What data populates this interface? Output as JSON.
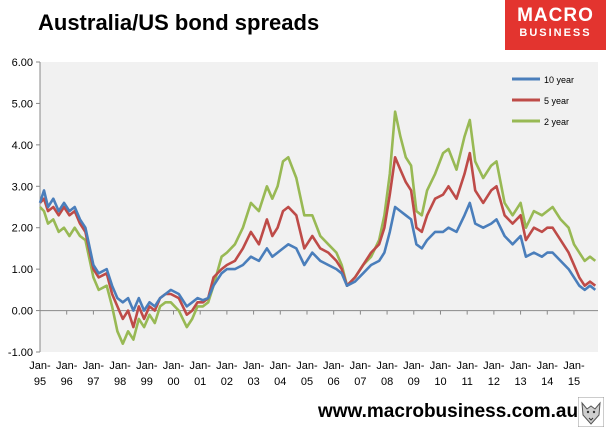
{
  "title": "Australia/US bond spreads",
  "logo": {
    "line1": "MACRO",
    "line2": "BUSINESS",
    "color": "#e3342f"
  },
  "footer": {
    "url": "www.macrobusiness.com.au"
  },
  "chart_data": {
    "type": "line",
    "title": "Australia/US bond spreads",
    "xlabel": "",
    "ylabel": "",
    "ylim": [
      -1.0,
      6.0
    ],
    "yticks": [
      -1,
      0,
      1,
      2,
      3,
      4,
      5,
      6
    ],
    "ytick_labels": [
      "-1.00",
      "0.00",
      "1.00",
      "2.00",
      "3.00",
      "4.00",
      "5.00",
      "6.00"
    ],
    "xlim": [
      1995.0,
      2015.9
    ],
    "xticks": [
      {
        "year": 1995,
        "label": "Jan-\n95"
      },
      {
        "year": 1996,
        "label": "Jan-\n96"
      },
      {
        "year": 1997,
        "label": "Jan-\n97"
      },
      {
        "year": 1998,
        "label": "Jan-\n98"
      },
      {
        "year": 1999,
        "label": "Jan-\n99"
      },
      {
        "year": 2000,
        "label": "Jan-\n00"
      },
      {
        "year": 2001,
        "label": "Jan-\n01"
      },
      {
        "year": 2002,
        "label": "Jan-\n02"
      },
      {
        "year": 2003,
        "label": "Jan-\n03"
      },
      {
        "year": 2004,
        "label": "Jan-\n04"
      },
      {
        "year": 2005,
        "label": "Jan-\n05"
      },
      {
        "year": 2006,
        "label": "Jan-\n06"
      },
      {
        "year": 2007,
        "label": "Jan-\n07"
      },
      {
        "year": 2008,
        "label": "Jan-\n08"
      },
      {
        "year": 2009,
        "label": "Jan-\n09"
      },
      {
        "year": 2010,
        "label": "Jan-\n10"
      },
      {
        "year": 2011,
        "label": "Jan-\n11"
      },
      {
        "year": 2012,
        "label": "Jan-\n12"
      },
      {
        "year": 2013,
        "label": "Jan-\n13"
      },
      {
        "year": 2014,
        "label": "Jan-\n14"
      },
      {
        "year": 2015,
        "label": "Jan-\n15"
      }
    ],
    "grid": false,
    "legend_position": "top-right",
    "series": [
      {
        "name": "10 year",
        "color": "#4a7ebb",
        "x": [
          1995.0,
          1995.15,
          1995.3,
          1995.5,
          1995.7,
          1995.9,
          1996.1,
          1996.3,
          1996.5,
          1996.7,
          1997.0,
          1997.2,
          1997.5,
          1997.7,
          1997.9,
          1998.1,
          1998.3,
          1998.5,
          1998.7,
          1998.9,
          1999.1,
          1999.3,
          1999.5,
          1999.7,
          1999.9,
          2000.2,
          2000.5,
          2000.7,
          2000.9,
          2001.1,
          2001.3,
          2001.5,
          2001.8,
          2002.0,
          2002.3,
          2002.6,
          2002.9,
          2003.2,
          2003.5,
          2003.7,
          2003.9,
          2004.1,
          2004.3,
          2004.6,
          2004.9,
          2005.2,
          2005.5,
          2005.8,
          2006.1,
          2006.3,
          2006.5,
          2006.8,
          2007.1,
          2007.4,
          2007.7,
          2007.9,
          2008.1,
          2008.3,
          2008.5,
          2008.7,
          2008.9,
          2009.1,
          2009.3,
          2009.5,
          2009.8,
          2010.1,
          2010.3,
          2010.6,
          2010.9,
          2011.1,
          2011.3,
          2011.6,
          2011.9,
          2012.1,
          2012.4,
          2012.7,
          2013.0,
          2013.2,
          2013.5,
          2013.8,
          2014.0,
          2014.2,
          2014.5,
          2014.8,
          2015.0,
          2015.2,
          2015.4,
          2015.6,
          2015.8
        ],
        "values": [
          2.6,
          2.9,
          2.5,
          2.7,
          2.4,
          2.6,
          2.4,
          2.5,
          2.2,
          2.0,
          1.1,
          0.9,
          1.0,
          0.6,
          0.3,
          0.2,
          0.3,
          0.0,
          0.3,
          0.0,
          0.2,
          0.1,
          0.3,
          0.4,
          0.5,
          0.4,
          0.1,
          0.2,
          0.3,
          0.25,
          0.3,
          0.6,
          0.9,
          1.0,
          1.0,
          1.1,
          1.3,
          1.2,
          1.5,
          1.3,
          1.4,
          1.5,
          1.6,
          1.5,
          1.1,
          1.4,
          1.2,
          1.1,
          1.0,
          0.9,
          0.6,
          0.7,
          0.9,
          1.1,
          1.2,
          1.4,
          1.9,
          2.5,
          2.4,
          2.3,
          2.2,
          1.6,
          1.5,
          1.7,
          1.9,
          1.9,
          2.0,
          1.9,
          2.3,
          2.6,
          2.1,
          2.0,
          2.1,
          2.2,
          1.8,
          1.6,
          1.8,
          1.3,
          1.4,
          1.3,
          1.4,
          1.4,
          1.2,
          1.0,
          0.8,
          0.6,
          0.5,
          0.6,
          0.5
        ]
      },
      {
        "name": "5 year",
        "color": "#be4b48",
        "x": [
          1995.0,
          1995.15,
          1995.3,
          1995.5,
          1995.7,
          1995.9,
          1996.1,
          1996.3,
          1996.5,
          1996.7,
          1997.0,
          1997.2,
          1997.5,
          1997.7,
          1997.9,
          1998.1,
          1998.3,
          1998.5,
          1998.7,
          1998.9,
          1999.1,
          1999.3,
          1999.5,
          1999.7,
          1999.9,
          2000.2,
          2000.5,
          2000.7,
          2000.9,
          2001.1,
          2001.3,
          2001.5,
          2001.8,
          2002.0,
          2002.3,
          2002.6,
          2002.9,
          2003.2,
          2003.5,
          2003.7,
          2003.9,
          2004.1,
          2004.3,
          2004.6,
          2004.9,
          2005.2,
          2005.5,
          2005.8,
          2006.1,
          2006.3,
          2006.5,
          2006.8,
          2007.1,
          2007.4,
          2007.7,
          2007.9,
          2008.1,
          2008.3,
          2008.5,
          2008.7,
          2008.9,
          2009.1,
          2009.3,
          2009.5,
          2009.8,
          2010.1,
          2010.3,
          2010.6,
          2010.9,
          2011.1,
          2011.3,
          2011.6,
          2011.9,
          2012.1,
          2012.4,
          2012.7,
          2013.0,
          2013.2,
          2013.5,
          2013.8,
          2014.0,
          2014.2,
          2014.5,
          2014.8,
          2015.0,
          2015.2,
          2015.4,
          2015.6,
          2015.8
        ],
        "values": [
          2.6,
          2.7,
          2.4,
          2.5,
          2.3,
          2.5,
          2.3,
          2.4,
          2.1,
          1.9,
          1.0,
          0.8,
          0.9,
          0.4,
          0.1,
          -0.2,
          0.0,
          -0.4,
          0.1,
          -0.2,
          0.1,
          0.0,
          0.3,
          0.4,
          0.4,
          0.3,
          -0.1,
          0.0,
          0.2,
          0.2,
          0.3,
          0.8,
          1.0,
          1.1,
          1.2,
          1.5,
          1.9,
          1.6,
          2.2,
          1.8,
          2.0,
          2.4,
          2.5,
          2.3,
          1.5,
          1.8,
          1.5,
          1.4,
          1.2,
          1.0,
          0.6,
          0.8,
          1.1,
          1.4,
          1.6,
          2.0,
          2.8,
          3.7,
          3.4,
          3.1,
          2.9,
          2.0,
          1.9,
          2.3,
          2.7,
          2.8,
          3.0,
          2.7,
          3.3,
          3.8,
          2.9,
          2.6,
          2.9,
          3.0,
          2.3,
          2.1,
          2.3,
          1.7,
          2.0,
          1.9,
          2.0,
          2.0,
          1.7,
          1.4,
          1.1,
          0.8,
          0.6,
          0.7,
          0.6
        ]
      },
      {
        "name": "2 year",
        "color": "#98b954",
        "x": [
          1995.0,
          1995.15,
          1995.3,
          1995.5,
          1995.7,
          1995.9,
          1996.1,
          1996.3,
          1996.5,
          1996.7,
          1997.0,
          1997.2,
          1997.5,
          1997.7,
          1997.9,
          1998.1,
          1998.3,
          1998.5,
          1998.7,
          1998.9,
          1999.1,
          1999.3,
          1999.5,
          1999.7,
          1999.9,
          2000.2,
          2000.5,
          2000.7,
          2000.9,
          2001.1,
          2001.3,
          2001.5,
          2001.8,
          2002.0,
          2002.3,
          2002.6,
          2002.9,
          2003.2,
          2003.5,
          2003.7,
          2003.9,
          2004.1,
          2004.3,
          2004.6,
          2004.9,
          2005.2,
          2005.5,
          2005.8,
          2006.1,
          2006.3,
          2006.5,
          2006.8,
          2007.1,
          2007.4,
          2007.7,
          2007.9,
          2008.1,
          2008.3,
          2008.5,
          2008.7,
          2008.9,
          2009.1,
          2009.3,
          2009.5,
          2009.8,
          2010.1,
          2010.3,
          2010.6,
          2010.9,
          2011.1,
          2011.3,
          2011.6,
          2011.9,
          2012.1,
          2012.4,
          2012.7,
          2013.0,
          2013.2,
          2013.5,
          2013.8,
          2014.0,
          2014.2,
          2014.5,
          2014.8,
          2015.0,
          2015.2,
          2015.4,
          2015.6,
          2015.8
        ],
        "values": [
          2.5,
          2.4,
          2.1,
          2.2,
          1.9,
          2.0,
          1.8,
          2.0,
          1.8,
          1.7,
          0.8,
          0.5,
          0.6,
          0.1,
          -0.5,
          -0.8,
          -0.5,
          -0.7,
          -0.2,
          -0.4,
          -0.1,
          -0.3,
          0.1,
          0.2,
          0.2,
          0.0,
          -0.4,
          -0.2,
          0.1,
          0.1,
          0.2,
          0.6,
          1.3,
          1.4,
          1.6,
          2.0,
          2.6,
          2.4,
          3.0,
          2.7,
          3.0,
          3.6,
          3.7,
          3.2,
          2.3,
          2.3,
          1.8,
          1.6,
          1.4,
          1.1,
          0.6,
          0.8,
          1.1,
          1.3,
          1.7,
          2.3,
          3.3,
          4.8,
          4.2,
          3.7,
          3.5,
          2.4,
          2.3,
          2.9,
          3.3,
          3.8,
          3.9,
          3.4,
          4.2,
          4.6,
          3.6,
          3.2,
          3.5,
          3.6,
          2.6,
          2.3,
          2.6,
          2.0,
          2.4,
          2.3,
          2.4,
          2.5,
          2.2,
          2.0,
          1.6,
          1.4,
          1.2,
          1.3,
          1.2
        ]
      }
    ]
  }
}
